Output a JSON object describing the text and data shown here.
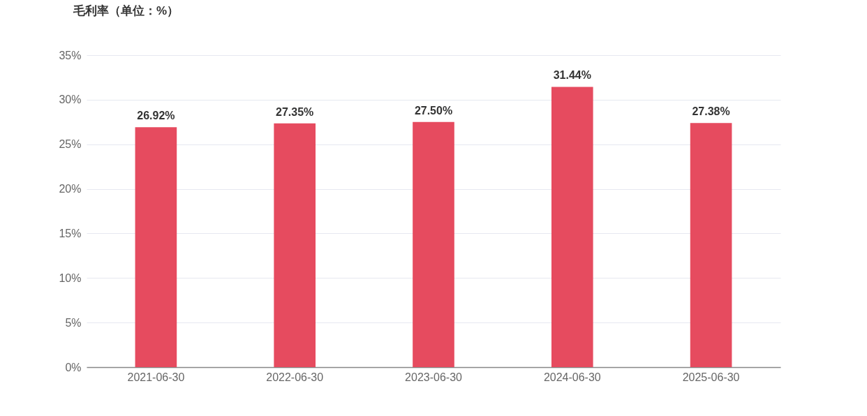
{
  "chart_data": {
    "type": "bar",
    "title": "毛利率（单位：%）",
    "categories": [
      "2021-06-30",
      "2022-06-30",
      "2023-06-30",
      "2024-06-30",
      "2025-06-30"
    ],
    "values": [
      26.92,
      27.35,
      27.5,
      31.44,
      27.38
    ],
    "value_labels": [
      "26.92%",
      "27.35%",
      "27.50%",
      "31.44%",
      "27.38%"
    ],
    "color": "#e64b5f",
    "ylim": [
      0,
      35
    ],
    "yticks": [
      {
        "value": 0,
        "label": "0%"
      },
      {
        "value": 5,
        "label": "5%"
      },
      {
        "value": 10,
        "label": "10%"
      },
      {
        "value": 15,
        "label": "15%"
      },
      {
        "value": 20,
        "label": "20%"
      },
      {
        "value": 25,
        "label": "25%"
      },
      {
        "value": 30,
        "label": "30%"
      },
      {
        "value": 35,
        "label": "35%"
      }
    ],
    "grid": "y"
  }
}
